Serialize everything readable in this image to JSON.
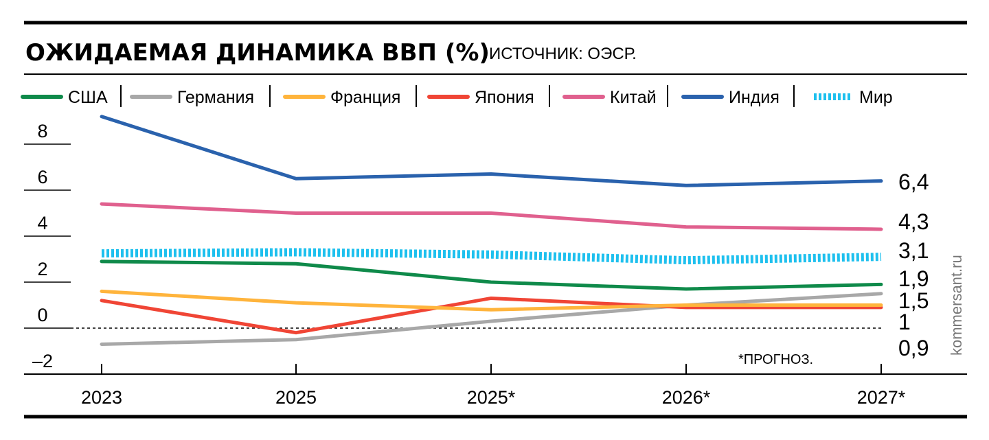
{
  "chart_data": {
    "type": "line",
    "title": "ОЖИДАЕМАЯ ДИНАМИКА ВВП (%)",
    "source": "ИСТОЧНИК: ОЭСР.",
    "note": "*ПРОГНОЗ.",
    "watermark": "kommersant.ru",
    "categories": [
      "2023",
      "2025",
      "2025*",
      "2026*",
      "2027*"
    ],
    "ylim": [
      -2,
      9.5
    ],
    "yticks": [
      -2,
      0,
      2,
      4,
      6,
      8
    ],
    "ytick_labels": [
      "–2",
      "0",
      "2",
      "4",
      "6",
      "8"
    ],
    "grid": false,
    "legend_position": "top",
    "series": [
      {
        "name": "США",
        "color": "#0f8a4a",
        "style": "solid",
        "values": [
          2.9,
          2.8,
          2.0,
          1.7,
          1.9
        ],
        "end_label": "1,9"
      },
      {
        "name": "Германия",
        "color": "#a8a8a8",
        "style": "solid",
        "values": [
          -0.7,
          -0.5,
          0.3,
          1.0,
          1.5
        ],
        "end_label": "1,5"
      },
      {
        "name": "Франция",
        "color": "#ffb43c",
        "style": "solid",
        "values": [
          1.6,
          1.1,
          0.8,
          1.0,
          1.0
        ],
        "end_label": "1"
      },
      {
        "name": "Япония",
        "color": "#f04535",
        "style": "solid",
        "values": [
          1.2,
          -0.2,
          1.3,
          0.9,
          0.9
        ],
        "end_label": "0,9"
      },
      {
        "name": "Китай",
        "color": "#e0608e",
        "style": "solid",
        "values": [
          5.4,
          5.0,
          5.0,
          4.4,
          4.3
        ],
        "end_label": "4,3"
      },
      {
        "name": "Индия",
        "color": "#2a62ad",
        "style": "solid",
        "values": [
          9.2,
          6.5,
          6.7,
          6.2,
          6.4
        ],
        "end_label": "6,4"
      },
      {
        "name": "Мир",
        "color": "#1ec0ee",
        "style": "dotted",
        "values": [
          3.25,
          3.3,
          3.2,
          2.95,
          3.1
        ],
        "end_label": "3,1"
      }
    ]
  }
}
